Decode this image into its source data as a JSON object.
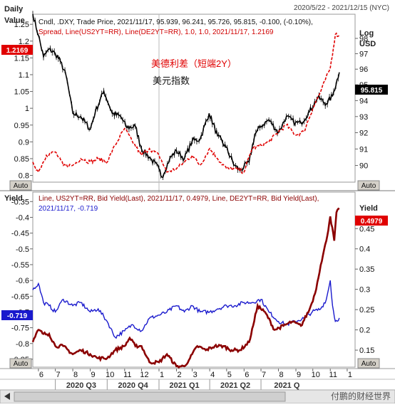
{
  "header": {
    "period_label": "Daily",
    "date_range": "2020/5/22 - 2021/12/15 (NYC)"
  },
  "top_panel": {
    "left_axis_label": "Value",
    "right_axis_label_1": "Log",
    "right_axis_label_2": "USD",
    "legend_line1": "Cndl, .DXY, Trade Price, 2021/11/17, 95.939, 96.241, 95.726, 95.815, -0.100, (-0.10%),",
    "legend_line2": "Spread, Line(US2YT=RR), Line(DE2YT=RR), 1.0, 1.0, 2021/11/17, 1.2169",
    "annotation_red": "美德利差（短端2Y）",
    "annotation_black": "美元指数",
    "spread_last": "1.2169",
    "dxy_last": "95.815",
    "auto_label": "Auto"
  },
  "bottom_panel": {
    "left_axis_label": "Yield",
    "right_axis_label": "Yield",
    "legend_line1": "Line, US2YT=RR, Bid Yield(Last), 2021/11/17, 0.4979, Line, DE2YT=RR, Bid Yield(Last),",
    "legend_line2": "2021/11/17, -0.719",
    "us2y_last": "0.4979",
    "de2y_last": "-0.719",
    "auto_label": "Auto"
  },
  "x_axis": {
    "month_ticks": [
      "6",
      "7",
      "8",
      "9",
      "10",
      "11",
      "12",
      "1",
      "2",
      "3",
      "4",
      "5",
      "6",
      "7",
      "8",
      "9",
      "10",
      "11",
      "1"
    ],
    "quarters": [
      "2020 Q3",
      "2020 Q4",
      "2021 Q1",
      "2021 Q2",
      "2021 Q"
    ]
  },
  "watermark": "付鹏的财经世界",
  "colors": {
    "dxy": "#000000",
    "spread": "#e00000",
    "us2y": "#8b0000",
    "de2y": "#1a1acd",
    "spread_tag_bg": "#e00000",
    "us2y_tag_bg": "#e00000",
    "de2y_tag_bg": "#1a1acd"
  },
  "chart_data": [
    {
      "type": "line",
      "title": "",
      "x_range": [
        "2020-05-22",
        "2021-12-15"
      ],
      "left_axis": {
        "label": "Value",
        "ticks": [
          0.8,
          0.85,
          0.9,
          0.95,
          1,
          1.05,
          1.1,
          1.15,
          1.2,
          1.25
        ],
        "ylim": [
          0.78,
          1.28
        ]
      },
      "right_axis": {
        "label": "Log USD",
        "scale": "log",
        "ticks": [
          90,
          91,
          92,
          93,
          94,
          95,
          96,
          97,
          98
        ],
        "ylim": [
          89.0,
          99.6
        ]
      },
      "series": [
        {
          "name": ".DXY",
          "axis": "right",
          "x": [
            "2020-05-22",
            "2020-06-01",
            "2020-06-10",
            "2020-06-20",
            "2020-07-01",
            "2020-07-10",
            "2020-07-20",
            "2020-08-01",
            "2020-08-15",
            "2020-09-01",
            "2020-09-10",
            "2020-09-25",
            "2020-10-10",
            "2020-10-25",
            "2020-11-05",
            "2020-11-20",
            "2020-12-01",
            "2020-12-15",
            "2021-01-01",
            "2021-01-06",
            "2021-01-20",
            "2021-02-01",
            "2021-02-15",
            "2021-03-01",
            "2021-03-15",
            "2021-03-31",
            "2021-04-15",
            "2021-04-30",
            "2021-05-15",
            "2021-05-25",
            "2021-06-10",
            "2021-06-20",
            "2021-07-01",
            "2021-07-15",
            "2021-08-01",
            "2021-08-15",
            "2021-08-31",
            "2021-09-10",
            "2021-09-25",
            "2021-10-10",
            "2021-10-25",
            "2021-11-05",
            "2021-11-17"
          ],
          "values": [
            99.6,
            98.2,
            96.8,
            97.3,
            97.0,
            96.5,
            95.6,
            93.2,
            93.0,
            92.2,
            93.3,
            94.6,
            93.2,
            93.0,
            92.3,
            92.4,
            91.0,
            90.5,
            89.8,
            89.3,
            90.4,
            90.9,
            90.4,
            91.5,
            91.6,
            93.2,
            91.8,
            91.1,
            90.0,
            89.7,
            90.2,
            91.9,
            92.4,
            92.8,
            92.0,
            93.0,
            92.6,
            92.6,
            93.3,
            94.2,
            93.8,
            94.3,
            95.8
          ]
        },
        {
          "name": "Spread",
          "axis": "left",
          "x": [
            "2020-05-22",
            "2020-06-01",
            "2020-06-15",
            "2020-07-01",
            "2020-07-15",
            "2020-08-01",
            "2020-08-15",
            "2020-09-01",
            "2020-09-15",
            "2020-10-01",
            "2020-10-15",
            "2020-11-01",
            "2020-11-15",
            "2020-12-01",
            "2020-12-15",
            "2021-01-01",
            "2021-01-15",
            "2021-02-01",
            "2021-02-15",
            "2021-03-01",
            "2021-03-15",
            "2021-04-01",
            "2021-04-15",
            "2021-05-01",
            "2021-05-15",
            "2021-06-01",
            "2021-06-15",
            "2021-07-01",
            "2021-07-15",
            "2021-08-01",
            "2021-08-15",
            "2021-09-01",
            "2021-09-15",
            "2021-10-01",
            "2021-10-15",
            "2021-11-01",
            "2021-11-10",
            "2021-11-17"
          ],
          "values": [
            0.84,
            0.81,
            0.86,
            0.87,
            0.83,
            0.83,
            0.85,
            0.84,
            0.85,
            0.84,
            0.89,
            0.94,
            0.9,
            0.86,
            0.88,
            0.86,
            0.81,
            0.82,
            0.84,
            0.86,
            0.83,
            0.88,
            0.85,
            0.82,
            0.82,
            0.81,
            0.88,
            0.89,
            0.9,
            0.93,
            0.95,
            0.92,
            0.93,
            1.0,
            1.05,
            1.12,
            1.22,
            1.2169
          ]
        }
      ]
    },
    {
      "type": "line",
      "title": "",
      "x_range": [
        "2020-05-22",
        "2021-12-15"
      ],
      "left_axis": {
        "label": "Yield",
        "ticks": [
          -0.85,
          -0.8,
          -0.75,
          -0.7,
          -0.65,
          -0.6,
          -0.55,
          -0.5,
          -0.45,
          -0.4,
          -0.35
        ],
        "ylim": [
          -0.875,
          -0.32
        ]
      },
      "right_axis": {
        "label": "Yield",
        "ticks": [
          0.15,
          0.2,
          0.25,
          0.3,
          0.35,
          0.4,
          0.45
        ],
        "ylim": [
          0.108,
          0.54
        ]
      },
      "series": [
        {
          "name": "US2YT=RR",
          "axis": "right",
          "x": [
            "2020-05-22",
            "2020-06-01",
            "2020-06-10",
            "2020-06-20",
            "2020-07-01",
            "2020-07-15",
            "2020-08-01",
            "2020-08-15",
            "2020-09-01",
            "2020-09-15",
            "2020-10-01",
            "2020-10-15",
            "2020-11-01",
            "2020-11-10",
            "2020-11-20",
            "2020-12-01",
            "2020-12-15",
            "2021-01-01",
            "2021-01-15",
            "2021-02-01",
            "2021-02-15",
            "2021-02-25",
            "2021-03-10",
            "2021-03-25",
            "2021-04-10",
            "2021-04-25",
            "2021-05-10",
            "2021-05-25",
            "2021-06-10",
            "2021-06-17",
            "2021-06-25",
            "2021-07-10",
            "2021-07-25",
            "2021-08-10",
            "2021-08-25",
            "2021-09-10",
            "2021-09-25",
            "2021-10-05",
            "2021-10-15",
            "2021-10-25",
            "2021-11-01",
            "2021-11-08",
            "2021-11-12",
            "2021-11-17"
          ],
          "values": [
            0.17,
            0.2,
            0.19,
            0.19,
            0.16,
            0.16,
            0.14,
            0.15,
            0.14,
            0.13,
            0.13,
            0.15,
            0.16,
            0.18,
            0.16,
            0.16,
            0.12,
            0.12,
            0.14,
            0.11,
            0.11,
            0.13,
            0.16,
            0.15,
            0.16,
            0.16,
            0.15,
            0.15,
            0.17,
            0.21,
            0.26,
            0.24,
            0.2,
            0.21,
            0.22,
            0.21,
            0.25,
            0.29,
            0.36,
            0.42,
            0.48,
            0.42,
            0.49,
            0.4979
          ]
        },
        {
          "name": "DE2YT=RR",
          "axis": "left",
          "x": [
            "2020-05-22",
            "2020-06-01",
            "2020-06-10",
            "2020-06-20",
            "2020-07-01",
            "2020-07-15",
            "2020-08-01",
            "2020-08-15",
            "2020-09-01",
            "2020-09-15",
            "2020-10-01",
            "2020-10-15",
            "2020-11-01",
            "2020-11-15",
            "2020-12-01",
            "2020-12-15",
            "2021-01-01",
            "2021-01-15",
            "2021-02-01",
            "2021-02-15",
            "2021-03-01",
            "2021-03-15",
            "2021-04-01",
            "2021-04-15",
            "2021-05-01",
            "2021-05-15",
            "2021-06-01",
            "2021-06-15",
            "2021-07-01",
            "2021-07-15",
            "2021-08-01",
            "2021-08-15",
            "2021-08-31",
            "2021-09-15",
            "2021-09-30",
            "2021-10-15",
            "2021-10-25",
            "2021-11-01",
            "2021-11-05",
            "2021-11-10",
            "2021-11-17"
          ],
          "values": [
            -0.63,
            -0.61,
            -0.67,
            -0.68,
            -0.7,
            -0.66,
            -0.68,
            -0.67,
            -0.7,
            -0.69,
            -0.73,
            -0.78,
            -0.76,
            -0.74,
            -0.76,
            -0.72,
            -0.71,
            -0.7,
            -0.68,
            -0.7,
            -0.68,
            -0.7,
            -0.7,
            -0.69,
            -0.68,
            -0.68,
            -0.67,
            -0.67,
            -0.66,
            -0.7,
            -0.73,
            -0.74,
            -0.73,
            -0.72,
            -0.7,
            -0.69,
            -0.66,
            -0.6,
            -0.68,
            -0.73,
            -0.719
          ]
        }
      ]
    }
  ]
}
